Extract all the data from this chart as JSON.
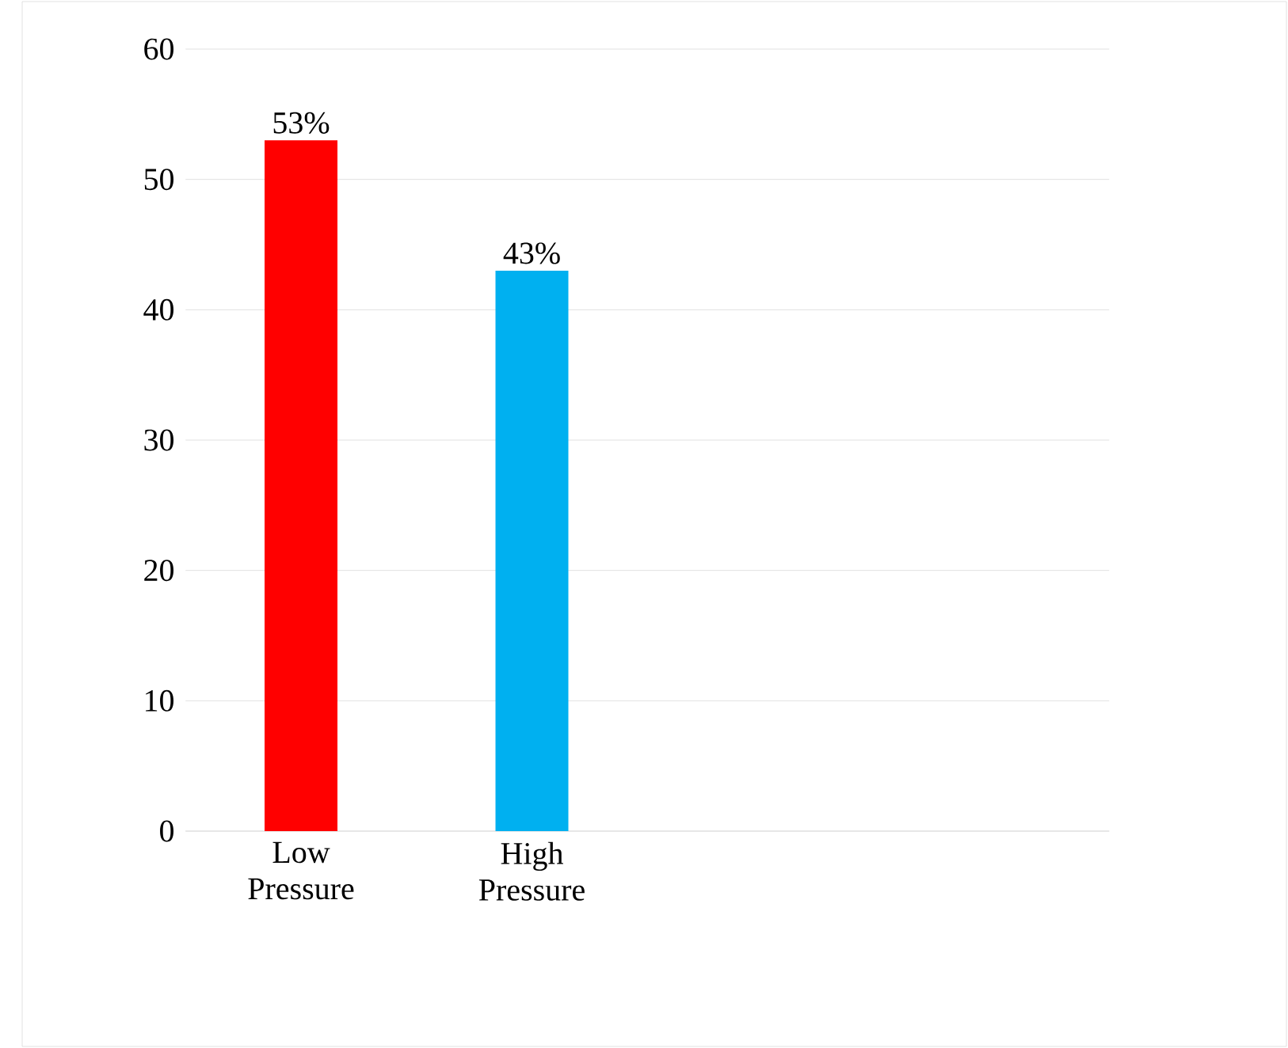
{
  "chart_data": {
    "type": "bar",
    "categories": [
      "Low Pressure",
      "High Pressure",
      null,
      null
    ],
    "values": [
      53,
      43,
      null,
      null
    ],
    "colors": [
      "#ff0000",
      "#00b0f0",
      null,
      null
    ],
    "value_labels": [
      "53%",
      "43%",
      null,
      null
    ],
    "ylim": [
      0,
      60
    ],
    "yticks": [
      0,
      10,
      20,
      30,
      40,
      50,
      60
    ],
    "grid": "y"
  }
}
